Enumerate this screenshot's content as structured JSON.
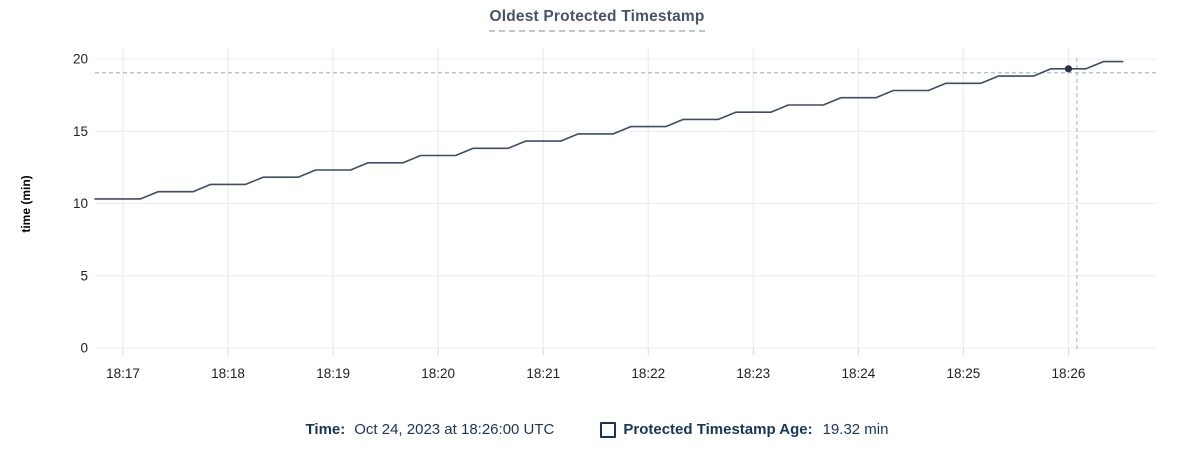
{
  "title": "Oldest Protected Timestamp",
  "legend": {
    "time_label": "Time:",
    "time_value": "Oct 24, 2023 at 18:26:00 UTC",
    "series_label": "Protected Timestamp Age:",
    "series_value": "19.32 min"
  },
  "colors": {
    "title_text": "#46536d",
    "legend_text": "#16365a",
    "series_line": "#3c4d68",
    "hover_dot": "#253449",
    "crosshair": "#a8bfca",
    "grid_h": "#ececec",
    "grid_v": "#f0f0f0",
    "tick_stub": "#d9d9d9",
    "axis_text": "#222222",
    "axis_title_text": "#000000"
  },
  "chart_data": {
    "type": "line",
    "title": "Oldest Protected Timestamp",
    "xlabel": "",
    "ylabel": "time (min)",
    "grid": true,
    "legend_position": "bottom",
    "x_time_epoch": "18:16:00 UTC",
    "x_domain_s": [
      44,
      650
    ],
    "x_tick_t_s": [
      60,
      120,
      180,
      240,
      300,
      360,
      420,
      480,
      540,
      600
    ],
    "x_tick_labels": [
      "18:17",
      "18:18",
      "18:19",
      "18:20",
      "18:21",
      "18:22",
      "18:23",
      "18:24",
      "18:25",
      "18:26"
    ],
    "y_ticks": [
      0,
      5,
      10,
      15,
      20
    ],
    "y_tick_labels": [
      "0",
      "5",
      "10",
      "15",
      "20"
    ],
    "ylim": [
      0,
      20
    ],
    "series": [
      {
        "name": "Protected Timestamp Age",
        "unit": "min",
        "points": [
          [
            44,
            10.32
          ],
          [
            70,
            10.32
          ],
          [
            80,
            10.82
          ],
          [
            100,
            10.82
          ],
          [
            110,
            11.32
          ],
          [
            130,
            11.32
          ],
          [
            140,
            11.82
          ],
          [
            160,
            11.82
          ],
          [
            170,
            12.32
          ],
          [
            190,
            12.32
          ],
          [
            200,
            12.82
          ],
          [
            220,
            12.82
          ],
          [
            230,
            13.32
          ],
          [
            250,
            13.32
          ],
          [
            260,
            13.82
          ],
          [
            280,
            13.82
          ],
          [
            290,
            14.32
          ],
          [
            310,
            14.32
          ],
          [
            320,
            14.82
          ],
          [
            340,
            14.82
          ],
          [
            350,
            15.32
          ],
          [
            370,
            15.32
          ],
          [
            380,
            15.82
          ],
          [
            400,
            15.82
          ],
          [
            410,
            16.32
          ],
          [
            430,
            16.32
          ],
          [
            440,
            16.82
          ],
          [
            460,
            16.82
          ],
          [
            470,
            17.32
          ],
          [
            490,
            17.32
          ],
          [
            500,
            17.82
          ],
          [
            520,
            17.82
          ],
          [
            530,
            18.32
          ],
          [
            550,
            18.32
          ],
          [
            560,
            18.82
          ],
          [
            580,
            18.82
          ],
          [
            590,
            19.32
          ],
          [
            610,
            19.32
          ],
          [
            620,
            19.82
          ],
          [
            631,
            19.82
          ]
        ]
      }
    ],
    "crosshair": {
      "t_s": 604.8,
      "hline_value": 19.05,
      "point": {
        "t_s": 600,
        "value": 19.32,
        "time": "18:26:00",
        "label": "19.32 min"
      }
    }
  }
}
